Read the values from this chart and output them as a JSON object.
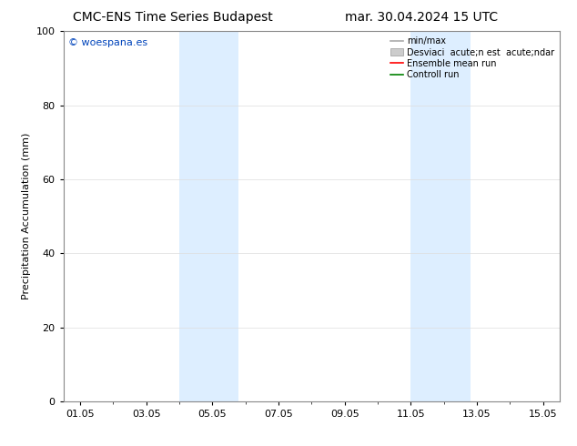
{
  "title_left": "CMC-ENS Time Series Budapest",
  "title_right": "mar. 30.04.2024 15 UTC",
  "ylabel": "Precipitation Accumulation (mm)",
  "ylim": [
    0,
    100
  ],
  "yticks": [
    0,
    20,
    40,
    60,
    80,
    100
  ],
  "xtick_labels": [
    "01.05",
    "03.05",
    "05.05",
    "07.05",
    "09.05",
    "11.05",
    "13.05",
    "15.05"
  ],
  "xtick_positions": [
    1.0,
    3.0,
    5.0,
    7.0,
    9.0,
    11.0,
    13.0,
    15.0
  ],
  "xlim": [
    0.5,
    15.5
  ],
  "shaded_regions": [
    {
      "xmin": 4.0,
      "xmax": 5.8,
      "color": "#ddeeff"
    },
    {
      "xmin": 11.0,
      "xmax": 12.8,
      "color": "#ddeeff"
    }
  ],
  "watermark_text": "© woespana.es",
  "watermark_color": "#0044bb",
  "legend_line1_label": "min/max",
  "legend_line1_color": "#aaaaaa",
  "legend_line2_label": "Desviaci  acute;n est  acute;ndar",
  "legend_line2_color": "#cccccc",
  "legend_line3_label": "Ensemble mean run",
  "legend_line3_color": "red",
  "legend_line4_label": "Controll run",
  "legend_line4_color": "green",
  "background_color": "#ffffff",
  "spine_color": "#888888",
  "title_fontsize": 10,
  "axis_label_fontsize": 8,
  "tick_fontsize": 8,
  "legend_fontsize": 7,
  "watermark_fontsize": 8
}
